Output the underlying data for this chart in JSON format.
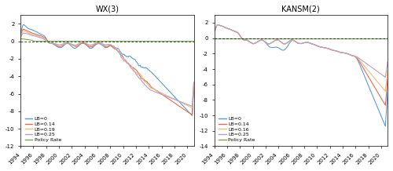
{
  "title_left": "WX(3)",
  "title_right": "KANSM(2)",
  "xlim": [
    1994,
    2021
  ],
  "ylim_left": [
    -12,
    3
  ],
  "ylim_right": [
    -14,
    3
  ],
  "yticks_left": [
    -12,
    -10,
    -8,
    -6,
    -4,
    -2,
    0,
    2
  ],
  "yticks_right": [
    -14,
    -12,
    -10,
    -8,
    -6,
    -4,
    -2,
    0,
    2
  ],
  "xticks": [
    1994,
    1996,
    1998,
    2000,
    2002,
    2004,
    2006,
    2008,
    2010,
    2012,
    2014,
    2016,
    2018,
    2020
  ],
  "colors_left": {
    "lb0": "#5b9bd5",
    "lb014": "#e06c5a",
    "lb019": "#f0b97a",
    "lb025": "#b8a0c8",
    "policy": "#70ad47"
  },
  "colors_right": {
    "lb0": "#5b9bd5",
    "lb014": "#e06c5a",
    "lb016": "#f0b97a",
    "lb025": "#b8a0c8",
    "policy": "#70ad47"
  },
  "legend_left": [
    "LB=0",
    "LB=0.14",
    "LB=0.19",
    "LB=0.25",
    "Policy Rate"
  ],
  "legend_right": [
    "LB=0",
    "LB=0.14",
    "LB=0.16",
    "LB=0.25",
    "Policy Rate"
  ],
  "background": "#f5f5f5"
}
